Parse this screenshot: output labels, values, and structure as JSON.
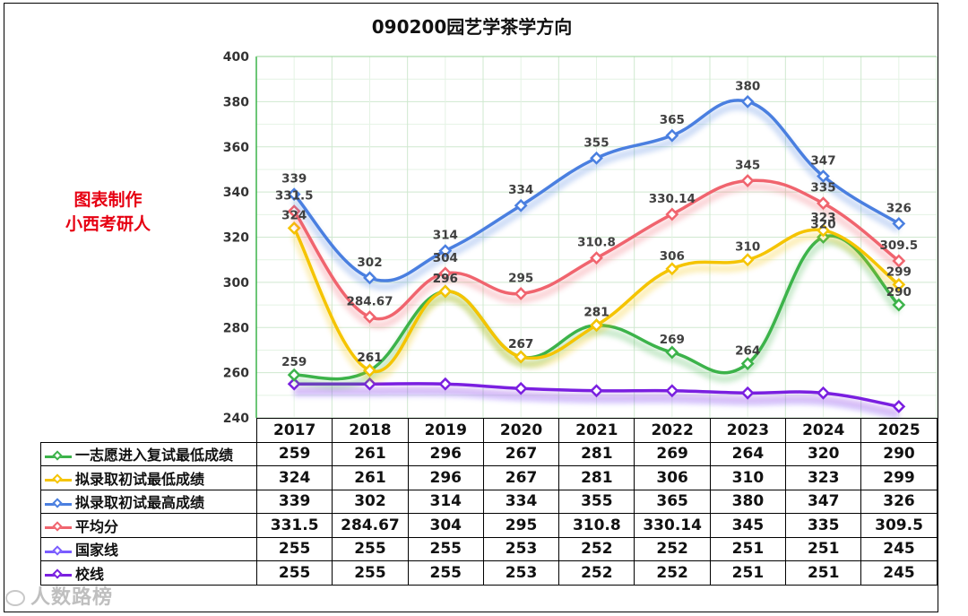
{
  "title": "090200园艺学茶学方向",
  "credit": [
    "图表制作",
    "小西考研人"
  ],
  "watermark": "人数路榜",
  "chart_data": {
    "type": "line",
    "title": "090200园艺学茶学方向",
    "categories": [
      "2017",
      "2018",
      "2019",
      "2020",
      "2021",
      "2022",
      "2023",
      "2024",
      "2025"
    ],
    "ylim": [
      240,
      400
    ],
    "yticks": [
      240,
      260,
      280,
      300,
      320,
      340,
      360,
      380,
      400
    ],
    "grid": true,
    "series": [
      {
        "name": "一志愿进入复试最低成绩",
        "color": "#3cb34a",
        "values": [
          "259",
          "261",
          "296",
          "267",
          "281",
          "269",
          "264",
          "320",
          "290"
        ]
      },
      {
        "name": "拟录取初试最低成绩",
        "color": "#f5c400",
        "values": [
          "324",
          "261",
          "296",
          "267",
          "281",
          "306",
          "310",
          "323",
          "299"
        ]
      },
      {
        "name": "拟录取初试最高成绩",
        "color": "#4a7fe0",
        "values": [
          "339",
          "302",
          "314",
          "334",
          "355",
          "365",
          "380",
          "347",
          "326"
        ]
      },
      {
        "name": "平均分",
        "color": "#f0646e",
        "values": [
          "331.5",
          "284.67",
          "304",
          "295",
          "310.8",
          "330.14",
          "345",
          "335",
          "309.5"
        ]
      },
      {
        "name": "国家线",
        "color": "#7a5cff",
        "values": [
          "255",
          "255",
          "255",
          "253",
          "252",
          "252",
          "251",
          "251",
          "245"
        ]
      },
      {
        "name": "校线",
        "color": "#7a1fe0",
        "values": [
          "255",
          "255",
          "255",
          "253",
          "252",
          "252",
          "251",
          "251",
          "245"
        ]
      }
    ]
  }
}
